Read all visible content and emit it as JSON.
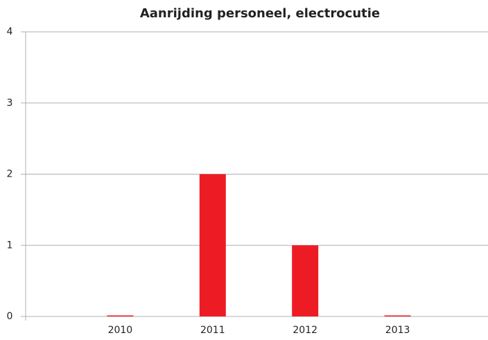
{
  "chart_data": {
    "type": "bar",
    "title": "Aanrijding personeel, electrocutie",
    "categories": [
      "2010",
      "2011",
      "2012",
      "2013"
    ],
    "values": [
      0,
      2,
      1,
      0
    ],
    "color": "#ed1c24",
    "ylim": [
      0,
      4
    ],
    "yticks": [
      0,
      1,
      2,
      3,
      4
    ],
    "grid": true
  }
}
